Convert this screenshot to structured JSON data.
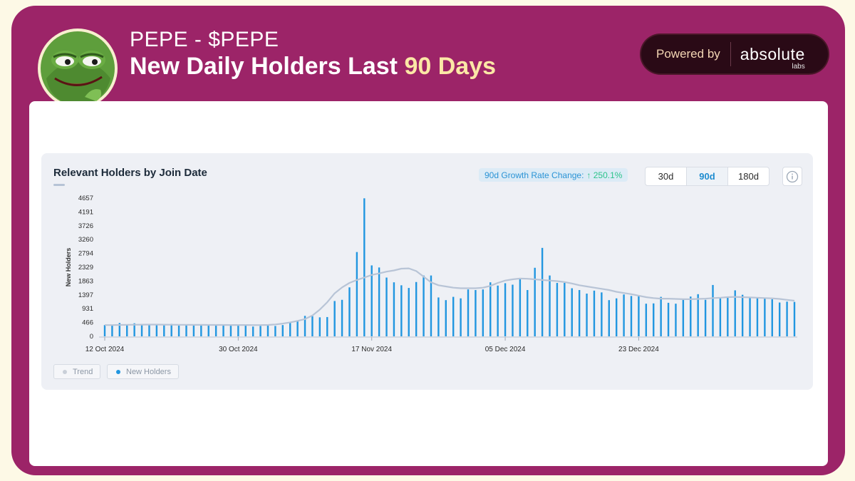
{
  "header": {
    "token": "PEPE - $PEPE",
    "title_main": "New  Daily Holders Last ",
    "title_accent": "90 Days",
    "powered_by": "Powered by",
    "logo_text": "absolute",
    "logo_sub": "labs"
  },
  "panel": {
    "title": "Relevant Holders by Join Date",
    "growth_label": "90d Growth Rate Change:",
    "growth_value": "↑ 250.1%",
    "ranges": [
      "30d",
      "90d",
      "180d"
    ],
    "active_range": "90d"
  },
  "colors": {
    "frame": "#9c2468",
    "accent": "#fbe7a6",
    "bar": "#2196e0",
    "trend": "#b8c4d6"
  },
  "chart_data": {
    "type": "bar",
    "title": "Relevant Holders by Join Date",
    "ylabel": "New Holders",
    "xlabel": "",
    "ylim": [
      0,
      4657
    ],
    "yticks": [
      0,
      466,
      931,
      1397,
      1863,
      2329,
      2794,
      3260,
      3726,
      4191,
      4657
    ],
    "x_start": "12 Oct 2024",
    "x_tick_labels": [
      {
        "label": "12 Oct 2024",
        "index": 0
      },
      {
        "label": "30 Oct 2024",
        "index": 18
      },
      {
        "label": "17 Nov 2024",
        "index": 36
      },
      {
        "label": "05 Dec 2024",
        "index": 54
      },
      {
        "label": "23 Dec 2024",
        "index": 72
      }
    ],
    "legend": [
      "Trend",
      "New Holders"
    ],
    "series": [
      {
        "name": "New Holders",
        "values": [
          380,
          360,
          450,
          380,
          440,
          380,
          390,
          380,
          370,
          420,
          360,
          370,
          370,
          380,
          360,
          370,
          380,
          360,
          400,
          370,
          330,
          350,
          370,
          350,
          380,
          460,
          520,
          690,
          680,
          640,
          650,
          1190,
          1230,
          1650,
          2840,
          4650,
          2390,
          2320,
          1980,
          1820,
          1720,
          1630,
          1830,
          2050,
          2050,
          1310,
          1220,
          1330,
          1280,
          1580,
          1560,
          1580,
          1820,
          1710,
          1790,
          1740,
          1920,
          1560,
          2310,
          2980,
          2050,
          1800,
          1800,
          1620,
          1560,
          1440,
          1540,
          1480,
          1220,
          1280,
          1410,
          1360,
          1360,
          1100,
          1110,
          1330,
          1130,
          1100,
          1270,
          1340,
          1420,
          1230,
          1730,
          1280,
          1300,
          1550,
          1400,
          1300,
          1300,
          1270,
          1250,
          1140,
          1170,
          1160
        ]
      },
      {
        "name": "Trend",
        "values": [
          380,
          380,
          385,
          390,
          392,
          394,
          396,
          395,
          393,
          392,
          390,
          388,
          387,
          386,
          385,
          384,
          383,
          382,
          382,
          381,
          380,
          380,
          385,
          400,
          430,
          470,
          520,
          580,
          700,
          900,
          1150,
          1450,
          1650,
          1800,
          1900,
          1980,
          2070,
          2120,
          2180,
          2220,
          2280,
          2290,
          2200,
          2010,
          1820,
          1720,
          1680,
          1640,
          1620,
          1620,
          1620,
          1640,
          1700,
          1800,
          1880,
          1920,
          1950,
          1940,
          1920,
          1900,
          1880,
          1860,
          1830,
          1780,
          1720,
          1680,
          1640,
          1600,
          1560,
          1500,
          1460,
          1420,
          1370,
          1320,
          1290,
          1270,
          1270,
          1260,
          1250,
          1250,
          1260,
          1270,
          1290,
          1300,
          1320,
          1330,
          1320,
          1310,
          1300,
          1290,
          1280,
          1260,
          1230,
          1200
        ]
      }
    ]
  }
}
